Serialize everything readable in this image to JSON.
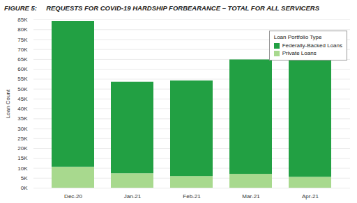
{
  "chart_data": {
    "type": "bar",
    "stacked": true,
    "title": "FIGURE 5:     REQUESTS FOR COVID-19 HARDSHIP FORBEARANCE – TOTAL FOR ALL SERVICERS",
    "y_label": "Loan Count",
    "legend_title": "Loan Portfolio Type",
    "legend": "top-right",
    "grid": true,
    "categories": [
      "Dec-20",
      "Jan-21",
      "Feb-21",
      "Mar-21",
      "Apr-21"
    ],
    "series": [
      {
        "name": "Federally-Backed Loans",
        "color": "#22a043",
        "values": [
          73700,
          46200,
          48300,
          57800,
          59000
        ]
      },
      {
        "name": "Private Loans",
        "color": "#a8d98e",
        "values": [
          10600,
          7300,
          5900,
          7000,
          5500
        ]
      }
    ],
    "ylim": [
      0,
      85000
    ],
    "yticks": [
      {
        "value": 0,
        "label": "0K"
      },
      {
        "value": 5000,
        "label": "5K"
      },
      {
        "value": 10000,
        "label": "10K"
      },
      {
        "value": 15000,
        "label": "15K"
      },
      {
        "value": 20000,
        "label": "20K"
      },
      {
        "value": 25000,
        "label": "25K"
      },
      {
        "value": 30000,
        "label": "30K"
      },
      {
        "value": 35000,
        "label": "35K"
      },
      {
        "value": 40000,
        "label": "40K"
      },
      {
        "value": 45000,
        "label": "45K"
      },
      {
        "value": 50000,
        "label": "50K"
      },
      {
        "value": 55000,
        "label": "55K"
      },
      {
        "value": 60000,
        "label": "60K"
      },
      {
        "value": 65000,
        "label": "65K"
      },
      {
        "value": 70000,
        "label": "70K"
      },
      {
        "value": 75000,
        "label": "75K"
      },
      {
        "value": 80000,
        "label": "80K"
      },
      {
        "value": 85000,
        "label": "85K"
      }
    ]
  }
}
